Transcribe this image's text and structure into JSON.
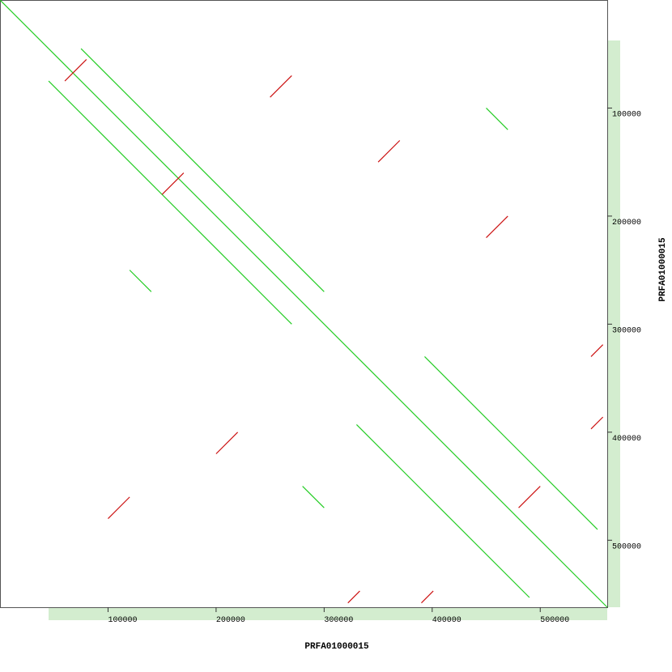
{
  "chart_data": {
    "type": "dotplot",
    "x_label": "PRFA01000015",
    "y_label": "PRFA01000015",
    "xlim": [
      0,
      562000
    ],
    "ylim": [
      0,
      562000
    ],
    "xticks": [
      100000,
      200000,
      300000,
      400000,
      500000
    ],
    "yticks": [
      100000,
      200000,
      300000,
      400000,
      500000
    ],
    "forward_color": "#22cc22",
    "reverse_color": "#cc1111",
    "segments": [
      {
        "strand": "forward",
        "x": [
          0,
          562000
        ],
        "y": [
          0,
          562000
        ]
      },
      {
        "strand": "forward",
        "x": [
          330000,
          490000
        ],
        "y": [
          393000,
          553000
        ]
      },
      {
        "strand": "forward",
        "x": [
          393000,
          553000
        ],
        "y": [
          330000,
          490000
        ]
      },
      {
        "strand": "forward",
        "x": [
          75000,
          300000
        ],
        "y": [
          45000,
          270000
        ]
      },
      {
        "strand": "forward",
        "x": [
          45000,
          270000
        ],
        "y": [
          75000,
          300000
        ]
      },
      {
        "strand": "forward",
        "x": [
          120000,
          140000
        ],
        "y": [
          250000,
          270000
        ]
      },
      {
        "strand": "forward",
        "x": [
          280000,
          300000
        ],
        "y": [
          450000,
          470000
        ]
      },
      {
        "strand": "forward",
        "x": [
          450000,
          470000
        ],
        "y": [
          100000,
          120000
        ]
      },
      {
        "strand": "reverse",
        "x": [
          322000,
          333000
        ],
        "y": [
          558000,
          547000
        ]
      },
      {
        "strand": "reverse",
        "x": [
          390000,
          401000
        ],
        "y": [
          558000,
          547000
        ]
      },
      {
        "strand": "reverse",
        "x": [
          547000,
          558000
        ],
        "y": [
          330000,
          319000
        ]
      },
      {
        "strand": "reverse",
        "x": [
          547000,
          558000
        ],
        "y": [
          397000,
          386000
        ]
      },
      {
        "strand": "reverse",
        "x": [
          60000,
          80000
        ],
        "y": [
          75000,
          55000
        ]
      },
      {
        "strand": "reverse",
        "x": [
          150000,
          170000
        ],
        "y": [
          180000,
          160000
        ]
      },
      {
        "strand": "reverse",
        "x": [
          250000,
          270000
        ],
        "y": [
          90000,
          70000
        ]
      },
      {
        "strand": "reverse",
        "x": [
          350000,
          370000
        ],
        "y": [
          150000,
          130000
        ]
      },
      {
        "strand": "reverse",
        "x": [
          450000,
          470000
        ],
        "y": [
          220000,
          200000
        ]
      },
      {
        "strand": "reverse",
        "x": [
          200000,
          220000
        ],
        "y": [
          420000,
          400000
        ]
      },
      {
        "strand": "reverse",
        "x": [
          480000,
          500000
        ],
        "y": [
          470000,
          450000
        ]
      },
      {
        "strand": "reverse",
        "x": [
          100000,
          120000
        ],
        "y": [
          480000,
          460000
        ]
      }
    ]
  }
}
